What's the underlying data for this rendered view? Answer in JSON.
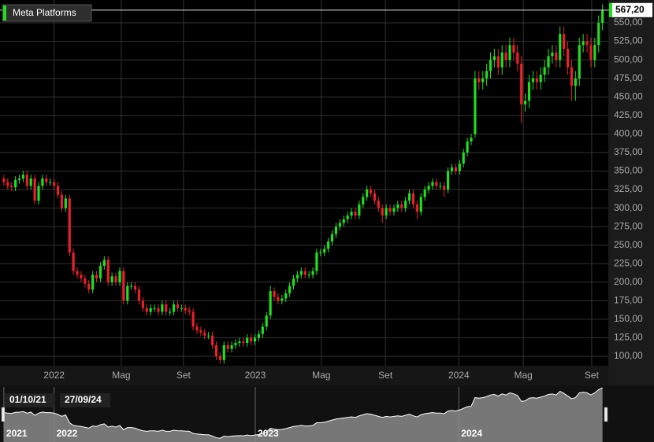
{
  "chart_data": {
    "type": "candlestick",
    "title": "Meta Platforms",
    "up_color": "#22dd22",
    "down_color": "#e8202a",
    "grid": true,
    "last_label": "567,20",
    "open": [
      340,
      335,
      330,
      328,
      338,
      340,
      345,
      330,
      340,
      310,
      330,
      340,
      335,
      335,
      330,
      318,
      300,
      313,
      240,
      215,
      210,
      205,
      198,
      190,
      210,
      205,
      222,
      230,
      200,
      208,
      200,
      215,
      175,
      195,
      195,
      190,
      175,
      165,
      160,
      165,
      165,
      160,
      170,
      160,
      160,
      170,
      165,
      165,
      162,
      160,
      140,
      135,
      132,
      128,
      128,
      115,
      100,
      95,
      115,
      110,
      115,
      118,
      120,
      118,
      125,
      120,
      125,
      130,
      140,
      155,
      188,
      180,
      175,
      178,
      185,
      195,
      205,
      210,
      215,
      210,
      210,
      215,
      240,
      240,
      245,
      255,
      265,
      275,
      280,
      285,
      290,
      295,
      290,
      305,
      315,
      325,
      320,
      310,
      300,
      290,
      300,
      295,
      300,
      305,
      300,
      310,
      320,
      305,
      295,
      315,
      325,
      330,
      335,
      330,
      330,
      325,
      350,
      355,
      350,
      360,
      375,
      390,
      400,
      475,
      470,
      475,
      485,
      500,
      505,
      490,
      510,
      500,
      520,
      510,
      495,
      440,
      445,
      470,
      475,
      470,
      480,
      490,
      505,
      510,
      500,
      535,
      515,
      490,
      465,
      475,
      520,
      525,
      520,
      500,
      520,
      550
    ],
    "high": [
      345,
      340,
      335,
      343,
      345,
      350,
      350,
      345,
      345,
      335,
      345,
      345,
      340,
      340,
      335,
      323,
      318,
      318,
      245,
      220,
      215,
      210,
      203,
      215,
      215,
      227,
      235,
      235,
      213,
      213,
      220,
      220,
      200,
      200,
      200,
      195,
      180,
      170,
      170,
      170,
      170,
      175,
      175,
      165,
      175,
      175,
      170,
      170,
      167,
      165,
      145,
      140,
      137,
      133,
      133,
      120,
      105,
      120,
      120,
      120,
      123,
      125,
      125,
      130,
      130,
      130,
      135,
      145,
      160,
      195,
      193,
      185,
      183,
      190,
      200,
      210,
      215,
      220,
      220,
      215,
      220,
      245,
      245,
      250,
      260,
      270,
      280,
      285,
      290,
      295,
      300,
      300,
      310,
      320,
      330,
      330,
      325,
      315,
      305,
      305,
      305,
      305,
      310,
      310,
      315,
      325,
      325,
      310,
      320,
      330,
      335,
      340,
      340,
      335,
      335,
      355,
      360,
      360,
      365,
      380,
      395,
      400,
      485,
      485,
      485,
      495,
      510,
      515,
      515,
      520,
      520,
      530,
      530,
      520,
      505,
      455,
      480,
      485,
      485,
      490,
      500,
      515,
      520,
      520,
      545,
      545,
      525,
      500,
      485,
      530,
      535,
      535,
      530,
      530,
      560,
      575
    ],
    "low": [
      330,
      325,
      323,
      323,
      333,
      335,
      325,
      325,
      305,
      305,
      325,
      330,
      330,
      325,
      313,
      295,
      295,
      235,
      210,
      205,
      200,
      193,
      185,
      185,
      200,
      200,
      217,
      195,
      195,
      195,
      195,
      170,
      170,
      190,
      185,
      170,
      160,
      155,
      155,
      160,
      155,
      155,
      155,
      155,
      155,
      160,
      160,
      157,
      155,
      135,
      130,
      127,
      123,
      123,
      110,
      95,
      90,
      90,
      105,
      105,
      110,
      113,
      113,
      113,
      115,
      115,
      120,
      125,
      135,
      150,
      175,
      170,
      170,
      173,
      180,
      190,
      200,
      205,
      205,
      205,
      205,
      210,
      235,
      235,
      240,
      250,
      260,
      270,
      275,
      280,
      285,
      285,
      285,
      300,
      310,
      315,
      305,
      295,
      280,
      285,
      290,
      290,
      295,
      295,
      295,
      305,
      300,
      285,
      290,
      310,
      320,
      325,
      325,
      325,
      315,
      320,
      345,
      345,
      345,
      355,
      370,
      385,
      395,
      460,
      460,
      465,
      475,
      490,
      480,
      480,
      490,
      490,
      500,
      485,
      415,
      430,
      435,
      460,
      460,
      460,
      470,
      480,
      495,
      490,
      490,
      505,
      480,
      445,
      445,
      465,
      510,
      510,
      490,
      490,
      510,
      540
    ],
    "close": [
      335,
      330,
      328,
      338,
      340,
      345,
      330,
      340,
      310,
      330,
      340,
      335,
      335,
      330,
      318,
      300,
      313,
      240,
      215,
      210,
      205,
      198,
      190,
      210,
      205,
      222,
      230,
      200,
      208,
      200,
      215,
      175,
      195,
      195,
      190,
      175,
      165,
      160,
      165,
      165,
      160,
      170,
      160,
      160,
      170,
      165,
      165,
      162,
      160,
      140,
      135,
      132,
      128,
      128,
      115,
      100,
      95,
      115,
      110,
      115,
      118,
      120,
      118,
      125,
      120,
      125,
      130,
      140,
      155,
      188,
      180,
      175,
      178,
      185,
      195,
      205,
      210,
      215,
      210,
      210,
      215,
      240,
      240,
      245,
      255,
      265,
      275,
      280,
      285,
      290,
      295,
      290,
      305,
      315,
      325,
      320,
      310,
      300,
      290,
      300,
      295,
      300,
      305,
      300,
      310,
      320,
      305,
      295,
      315,
      325,
      330,
      335,
      330,
      330,
      325,
      350,
      355,
      350,
      360,
      375,
      390,
      395,
      475,
      470,
      475,
      485,
      500,
      505,
      490,
      510,
      500,
      520,
      510,
      495,
      440,
      445,
      470,
      475,
      470,
      480,
      490,
      505,
      510,
      500,
      535,
      515,
      490,
      465,
      475,
      520,
      525,
      520,
      500,
      520,
      550,
      567.2
    ],
    "xlim": [
      -1,
      156.5
    ],
    "xticks": [
      {
        "value": 13,
        "label": "2022"
      },
      {
        "value": 30.4,
        "label": "Mag"
      },
      {
        "value": 46.5,
        "label": "Set"
      },
      {
        "value": 65.1,
        "label": "2023"
      },
      {
        "value": 82.2,
        "label": "Mag"
      },
      {
        "value": 98.8,
        "label": "Set"
      },
      {
        "value": 117.8,
        "label": "2024"
      },
      {
        "value": 134.5,
        "label": "Mag"
      },
      {
        "value": 152.2,
        "label": "Set"
      }
    ],
    "ylim": [
      87.3,
      580.8
    ],
    "yticks": [
      {
        "value": 100,
        "label": "100,00"
      },
      {
        "value": 125,
        "label": "125,00"
      },
      {
        "value": 150,
        "label": "150,00"
      },
      {
        "value": 175,
        "label": "175,00"
      },
      {
        "value": 200,
        "label": "200,00"
      },
      {
        "value": 225,
        "label": "225,00"
      },
      {
        "value": 250,
        "label": "250,00"
      },
      {
        "value": 275,
        "label": "275,00"
      },
      {
        "value": 300,
        "label": "300,00"
      },
      {
        "value": 325,
        "label": "325,00"
      },
      {
        "value": 350,
        "label": "350,00"
      },
      {
        "value": 375,
        "label": "375,00"
      },
      {
        "value": 400,
        "label": "400,00"
      },
      {
        "value": 425,
        "label": "425,00"
      },
      {
        "value": 450,
        "label": "450,00"
      },
      {
        "value": 475,
        "label": "475,00"
      },
      {
        "value": 500,
        "label": "500,00"
      },
      {
        "value": 525,
        "label": "525,00"
      },
      {
        "value": 550,
        "label": "550,00"
      }
    ],
    "navigator": {
      "start_label": "01/10/21",
      "end_label": "27/09/24",
      "ylim": [
        60,
        575
      ],
      "xticks": [
        {
          "value": 0,
          "label": "2021"
        },
        {
          "value": 13,
          "label": "2022"
        },
        {
          "value": 65.1,
          "label": "2023"
        },
        {
          "value": 117.8,
          "label": "2024"
        }
      ]
    }
  }
}
